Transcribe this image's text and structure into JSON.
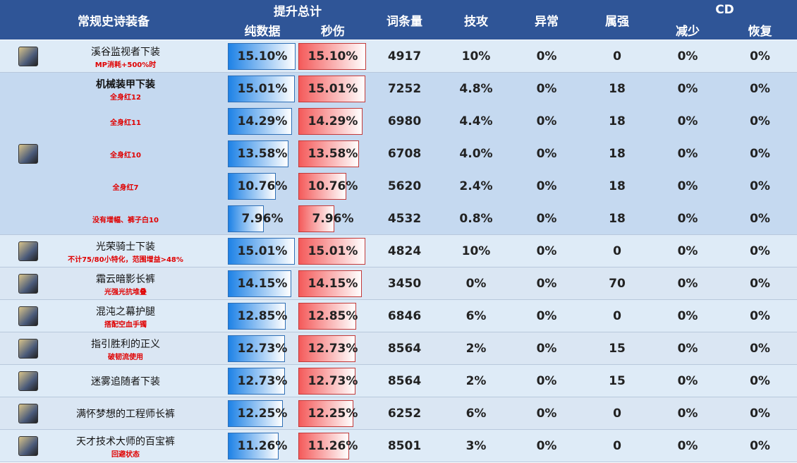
{
  "header": {
    "equipment": "常规史诗装备",
    "total": "提升总计",
    "pure": "纯数据",
    "dps": "秒伤",
    "entries": "词条量",
    "skill": "技攻",
    "abnormal": "异常",
    "element": "属强",
    "cd": "CD",
    "cd_reduce": "减少",
    "cd_recover": "恢复"
  },
  "items": [
    {
      "name": "溪谷监视者下装",
      "rows": [
        {
          "note": "MP消耗+500%时",
          "values": [
            "15.10%",
            "15.10%",
            "4917",
            "10%",
            "0%",
            "0",
            "0%",
            "0%"
          ]
        }
      ]
    },
    {
      "name": "机械装甲下装",
      "rows": [
        {
          "note": "全身红12",
          "values": [
            "15.01%",
            "15.01%",
            "7252",
            "4.8%",
            "0%",
            "18",
            "0%",
            "0%"
          ]
        },
        {
          "note": "全身红11",
          "values": [
            "14.29%",
            "14.29%",
            "6980",
            "4.4%",
            "0%",
            "18",
            "0%",
            "0%"
          ]
        },
        {
          "note": "全身红10",
          "values": [
            "13.58%",
            "13.58%",
            "6708",
            "4.0%",
            "0%",
            "18",
            "0%",
            "0%"
          ]
        },
        {
          "note": "全身红7",
          "values": [
            "10.76%",
            "10.76%",
            "5620",
            "2.4%",
            "0%",
            "18",
            "0%",
            "0%"
          ]
        },
        {
          "note": "没有增幅、裤子白10",
          "values": [
            "7.96%",
            "7.96%",
            "4532",
            "0.8%",
            "0%",
            "18",
            "0%",
            "0%"
          ]
        }
      ]
    },
    {
      "name": "光荣骑士下装",
      "rows": [
        {
          "note": "不计75/80小特化，范围增益>48%",
          "values": [
            "15.01%",
            "15.01%",
            "4824",
            "10%",
            "0%",
            "0",
            "0%",
            "0%"
          ]
        }
      ]
    },
    {
      "name": "霜云暗影长裤",
      "rows": [
        {
          "note": "光强光抗堆叠",
          "values": [
            "14.15%",
            "14.15%",
            "3450",
            "0%",
            "0%",
            "70",
            "0%",
            "0%"
          ]
        }
      ]
    },
    {
      "name": "混沌之幕护腿",
      "rows": [
        {
          "note": "搭配空血手镯",
          "values": [
            "12.85%",
            "12.85%",
            "6846",
            "6%",
            "0%",
            "0",
            "0%",
            "0%"
          ]
        }
      ]
    },
    {
      "name": "指引胜利的正义",
      "rows": [
        {
          "note": "破韧流使用",
          "values": [
            "12.73%",
            "12.73%",
            "8564",
            "2%",
            "0%",
            "15",
            "0%",
            "0%"
          ]
        }
      ]
    },
    {
      "name": "迷雾追随者下装",
      "rows": [
        {
          "values": [
            "12.73%",
            "12.73%",
            "8564",
            "2%",
            "0%",
            "15",
            "0%",
            "0%"
          ]
        }
      ]
    },
    {
      "name": "满怀梦想的工程师长裤",
      "rows": [
        {
          "values": [
            "12.25%",
            "12.25%",
            "6252",
            "6%",
            "0%",
            "0",
            "0%",
            "0%"
          ]
        }
      ]
    },
    {
      "name": "天才技术大师的百宝裤",
      "rows": [
        {
          "note": "回避状态",
          "values": [
            "11.26%",
            "11.26%",
            "8501",
            "3%",
            "0%",
            "0",
            "0%",
            "0%"
          ]
        }
      ]
    }
  ]
}
